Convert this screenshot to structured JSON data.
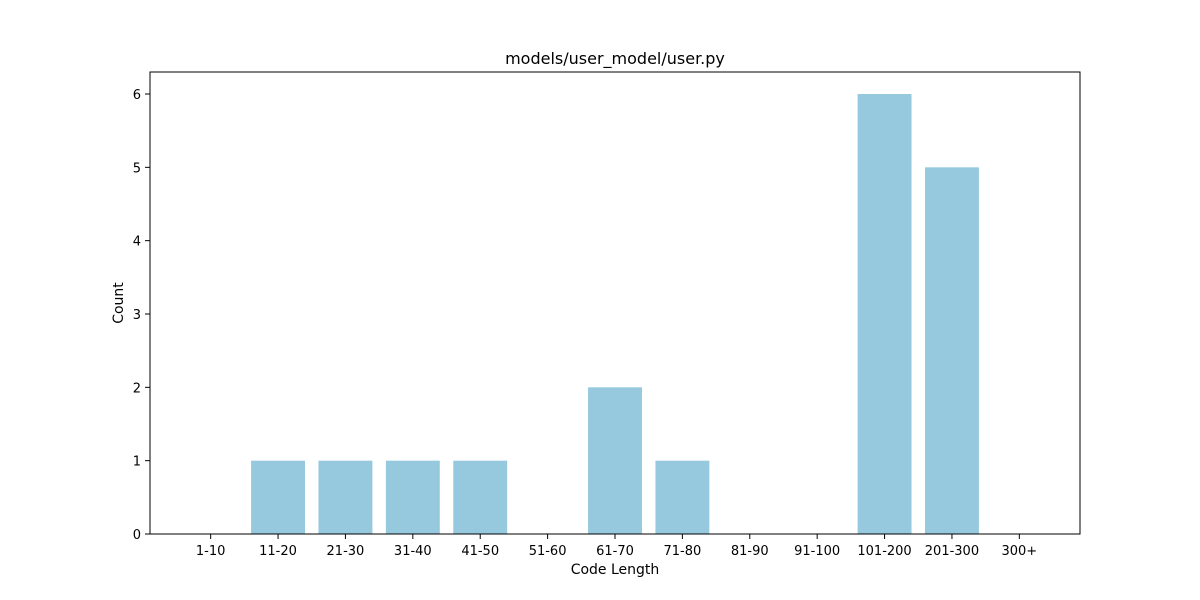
{
  "chart_data": {
    "type": "bar",
    "title": "models/user_model/user.py",
    "xlabel": "Code Length",
    "ylabel": "Count",
    "categories": [
      "1-10",
      "11-20",
      "21-30",
      "31-40",
      "41-50",
      "51-60",
      "61-70",
      "71-80",
      "81-90",
      "91-100",
      "101-200",
      "201-300",
      "300+"
    ],
    "values": [
      0,
      1,
      1,
      1,
      1,
      0,
      2,
      1,
      0,
      0,
      6,
      5,
      0
    ],
    "yticks": [
      "0",
      "1",
      "2",
      "3",
      "4",
      "5",
      "6"
    ],
    "ylim": [
      0,
      6.3
    ],
    "bar_color": "#96c9de",
    "grid": false,
    "legend": "none"
  }
}
